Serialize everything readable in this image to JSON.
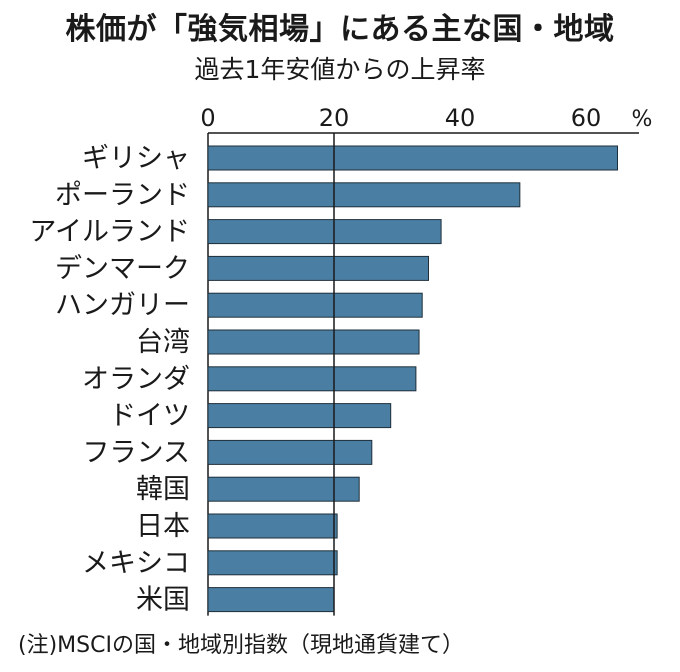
{
  "title": "株価が「強気相場」にある主な国・地域",
  "subtitle": "過去1年安値からの上昇率",
  "note": "(注)MSCIの国・地域別指数（現地通貨建て）",
  "colors": {
    "bar": "#4a7fa3",
    "bar_edge": "#1f2f3a",
    "axis": "#1a1a1a",
    "grid": "#1a1a1a"
  },
  "chart_data": {
    "type": "bar",
    "orientation": "horizontal",
    "categories": [
      "ギリシャ",
      "ポーランド",
      "アイルランド",
      "デンマーク",
      "ハンガリー",
      "台湾",
      "オランダ",
      "ドイツ",
      "フランス",
      "韓国",
      "日本",
      "メキシコ",
      "米国"
    ],
    "values": [
      65,
      49.5,
      37,
      35,
      34,
      33.5,
      33,
      29,
      26,
      24,
      20.5,
      20.5,
      20
    ],
    "unit": "%",
    "xticks": [
      0,
      20,
      40,
      60
    ],
    "xlim": [
      0,
      70
    ],
    "reference_line": 20,
    "grid": false
  }
}
